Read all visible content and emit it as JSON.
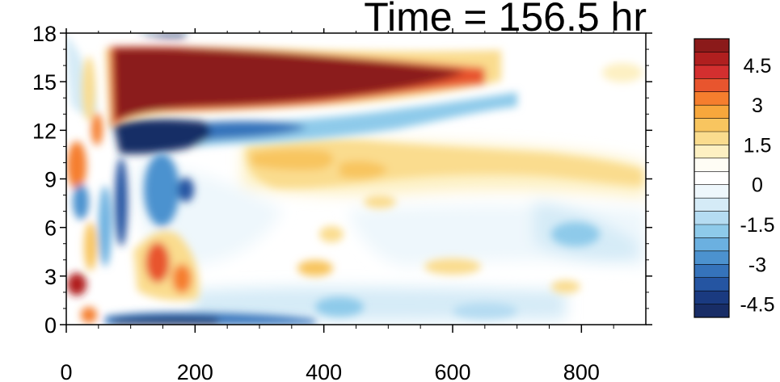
{
  "chart_data": {
    "type": "heatmap",
    "title": "Time = 156.5 hr",
    "xlabel": "",
    "ylabel": "",
    "xlim": [
      0,
      900
    ],
    "ylim": [
      0,
      18
    ],
    "x_ticks": [
      "0",
      "200",
      "400",
      "600",
      "800"
    ],
    "y_ticks": [
      "0",
      "3",
      "6",
      "9",
      "12",
      "15",
      "18"
    ],
    "colorbar": {
      "labels": [
        "4.5",
        "3",
        "1.5",
        "0",
        "-1.5",
        "-3",
        "-4.5"
      ],
      "colors": [
        "#8b1a1a",
        "#b01f1f",
        "#d32f2f",
        "#e8552e",
        "#f57e2e",
        "#f7a73c",
        "#f8c55f",
        "#fadc8e",
        "#fdf0c2",
        "#fffdf5",
        "#ffffff",
        "#eef7fc",
        "#d5ebf7",
        "#b5dcf2",
        "#8ecaea",
        "#6bb0e0",
        "#4c92cf",
        "#3573bb",
        "#2555a2",
        "#1a3a80",
        "#182d66"
      ]
    },
    "features": [
      {
        "name": "upper positive band",
        "sign": "positive",
        "x_range": [
          70,
          640
        ],
        "y_range": [
          13,
          17
        ],
        "peak": 5.5
      },
      {
        "name": "negative band below",
        "sign": "negative",
        "x_range": [
          90,
          360
        ],
        "y_range": [
          10.5,
          13
        ],
        "peak": -5.5
      },
      {
        "name": "near-surface negative",
        "sign": "negative",
        "x_range": [
          70,
          300
        ],
        "y_range": [
          0,
          1
        ],
        "peak": -5
      },
      {
        "name": "low-level positive",
        "sign": "positive",
        "x_range": [
          110,
          230
        ],
        "y_range": [
          1.5,
          5
        ],
        "peak": 3.5
      },
      {
        "name": "weak positive mid-level",
        "sign": "positive",
        "x_range": [
          280,
          900
        ],
        "y_range": [
          8,
          11
        ],
        "peak": 1.5
      }
    ]
  }
}
